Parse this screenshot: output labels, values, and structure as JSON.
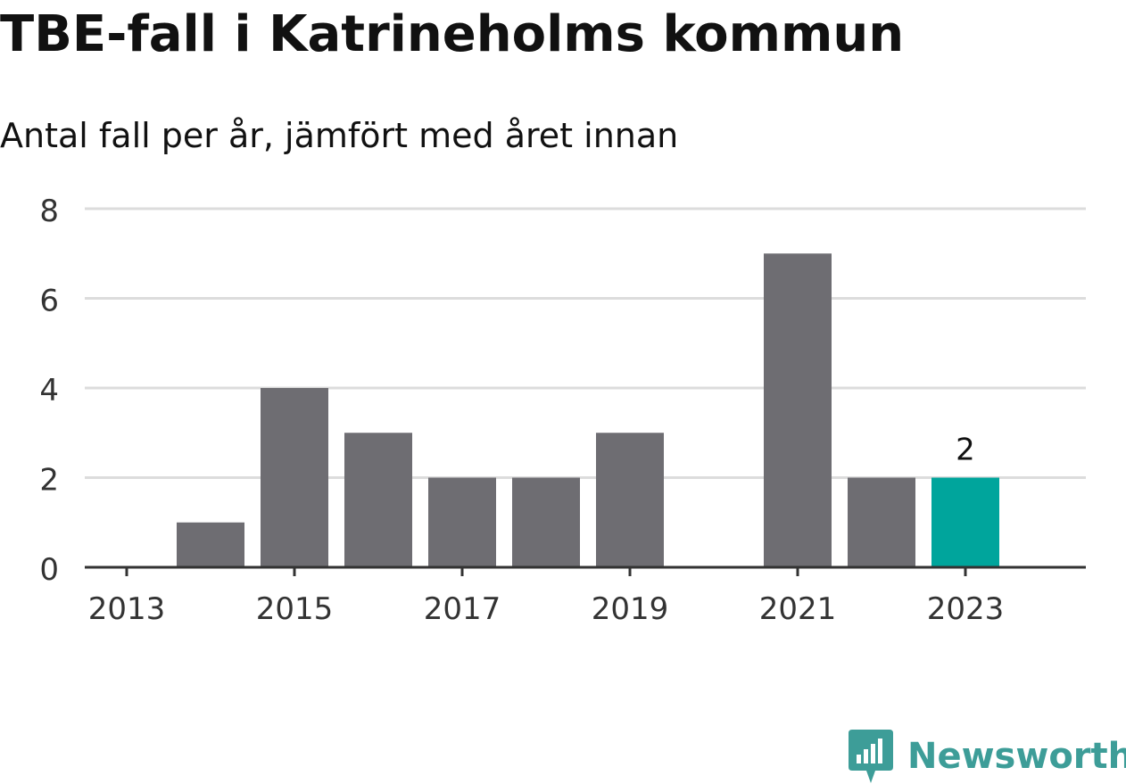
{
  "title": "TBE-fall i Katrineholms kommun",
  "subtitle": "Antal fall per år, jämfört med året innan",
  "brand": {
    "name": "Newsworthy",
    "icon": "newsworthy-logo-icon",
    "color": "#3d9d98"
  },
  "colors": {
    "bar": "#6e6d72",
    "highlight": "#00a59c",
    "grid": "#dcdcdc",
    "axis": "#333333",
    "text": "#333333"
  },
  "chart_data": {
    "type": "bar",
    "categories": [
      "2013",
      "2014",
      "2015",
      "2016",
      "2017",
      "2018",
      "2019",
      "2020",
      "2021",
      "2022",
      "2023"
    ],
    "values": [
      0,
      1,
      4,
      3,
      2,
      2,
      3,
      0,
      7,
      2,
      2
    ],
    "highlight": "2023",
    "data_labels": [
      {
        "category": "2023",
        "text": "2"
      }
    ],
    "x_tick_labels": [
      "2013",
      "2015",
      "2017",
      "2019",
      "2021",
      "2023"
    ],
    "y_ticks": [
      0,
      2,
      4,
      6,
      8
    ],
    "ylim": [
      0,
      8
    ],
    "xlabel": "",
    "ylabel": "",
    "grid": true,
    "legend": "none"
  }
}
